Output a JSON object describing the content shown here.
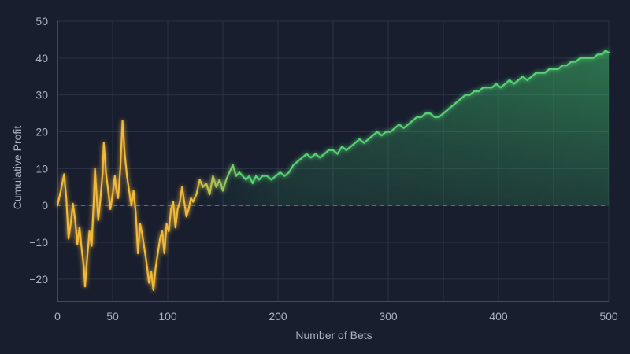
{
  "colors": {
    "background": "#181e2e",
    "grid": "#2b3346",
    "axis": "#5b6478",
    "zero_line": "#8a93a6",
    "early_series": "#f2b93b",
    "late_series": "#56d274",
    "tick_text": "#a9b1c2"
  },
  "chart_data": {
    "type": "line",
    "title": "",
    "xlabel": "Number of Bets",
    "ylabel": "Cumulative Profit",
    "xlim": [
      0,
      500
    ],
    "ylim": [
      -26,
      50
    ],
    "xticks": [
      0,
      50,
      100,
      200,
      300,
      400,
      500
    ],
    "yticks": [
      -20,
      -10,
      0,
      10,
      20,
      30,
      40,
      50
    ],
    "grid": true,
    "zero_line": "dashed",
    "area_fill": "green gradient under the later portion of the line",
    "series": [
      {
        "color_note": "yellow-orange, fading to green after about 150 bets",
        "points": [
          [
            0,
            0
          ],
          [
            3,
            4
          ],
          [
            6,
            8.5
          ],
          [
            8,
            2
          ],
          [
            10,
            -9
          ],
          [
            12,
            -5
          ],
          [
            14,
            0.5
          ],
          [
            16,
            -4
          ],
          [
            18,
            -10.5
          ],
          [
            20,
            -6
          ],
          [
            22,
            -12
          ],
          [
            24,
            -17
          ],
          [
            25,
            -22
          ],
          [
            27,
            -14
          ],
          [
            29,
            -7
          ],
          [
            31,
            -11
          ],
          [
            33,
            2
          ],
          [
            34,
            10
          ],
          [
            35,
            5
          ],
          [
            37,
            -4
          ],
          [
            39,
            2
          ],
          [
            41,
            9
          ],
          [
            42,
            17
          ],
          [
            44,
            9
          ],
          [
            46,
            4
          ],
          [
            48,
            -1
          ],
          [
            50,
            3
          ],
          [
            52,
            8
          ],
          [
            53,
            5
          ],
          [
            55,
            2
          ],
          [
            57,
            10
          ],
          [
            59,
            23
          ],
          [
            61,
            14
          ],
          [
            63,
            8
          ],
          [
            65,
            4
          ],
          [
            67,
            0
          ],
          [
            69,
            4
          ],
          [
            71,
            -2
          ],
          [
            73,
            -13
          ],
          [
            75,
            -5
          ],
          [
            77,
            -8
          ],
          [
            79,
            -12
          ],
          [
            81,
            -16
          ],
          [
            83,
            -21
          ],
          [
            85,
            -18
          ],
          [
            87,
            -23
          ],
          [
            89,
            -17
          ],
          [
            91,
            -13
          ],
          [
            93,
            -9
          ],
          [
            95,
            -7
          ],
          [
            97,
            -13
          ],
          [
            99,
            -5
          ],
          [
            101,
            -7
          ],
          [
            103,
            -1
          ],
          [
            105,
            1
          ],
          [
            107,
            -6
          ],
          [
            109,
            -1
          ],
          [
            111,
            1
          ],
          [
            113,
            5
          ],
          [
            115,
            1
          ],
          [
            117,
            -3
          ],
          [
            119,
            -1
          ],
          [
            121,
            2
          ],
          [
            123,
            1
          ],
          [
            126,
            3
          ],
          [
            129,
            7
          ],
          [
            132,
            5
          ],
          [
            135,
            6
          ],
          [
            138,
            3
          ],
          [
            141,
            8
          ],
          [
            144,
            5
          ],
          [
            147,
            7
          ],
          [
            150,
            4
          ],
          [
            153,
            7
          ],
          [
            156,
            9
          ],
          [
            159,
            11
          ],
          [
            162,
            8
          ],
          [
            165,
            9
          ],
          [
            168,
            8
          ],
          [
            171,
            7
          ],
          [
            174,
            8
          ],
          [
            177,
            6
          ],
          [
            180,
            8
          ],
          [
            183,
            7
          ],
          [
            186,
            8
          ],
          [
            190,
            8
          ],
          [
            194,
            7
          ],
          [
            198,
            8
          ],
          [
            202,
            9
          ],
          [
            206,
            8
          ],
          [
            210,
            9
          ],
          [
            214,
            11
          ],
          [
            218,
            12
          ],
          [
            222,
            13
          ],
          [
            226,
            14
          ],
          [
            230,
            13
          ],
          [
            234,
            14
          ],
          [
            238,
            13
          ],
          [
            242,
            14
          ],
          [
            246,
            15
          ],
          [
            250,
            15
          ],
          [
            254,
            14
          ],
          [
            258,
            16
          ],
          [
            262,
            15
          ],
          [
            266,
            16
          ],
          [
            270,
            17
          ],
          [
            274,
            18
          ],
          [
            278,
            17
          ],
          [
            282,
            18
          ],
          [
            286,
            19
          ],
          [
            290,
            20
          ],
          [
            294,
            19
          ],
          [
            298,
            20
          ],
          [
            302,
            20
          ],
          [
            306,
            21
          ],
          [
            310,
            22
          ],
          [
            314,
            21
          ],
          [
            318,
            22
          ],
          [
            322,
            23
          ],
          [
            326,
            24
          ],
          [
            330,
            24
          ],
          [
            334,
            25
          ],
          [
            338,
            25
          ],
          [
            342,
            24
          ],
          [
            346,
            24
          ],
          [
            350,
            25
          ],
          [
            354,
            26
          ],
          [
            358,
            27
          ],
          [
            362,
            28
          ],
          [
            366,
            29
          ],
          [
            370,
            30
          ],
          [
            374,
            30
          ],
          [
            378,
            31
          ],
          [
            382,
            31
          ],
          [
            386,
            32
          ],
          [
            390,
            32
          ],
          [
            394,
            32
          ],
          [
            398,
            33
          ],
          [
            402,
            32
          ],
          [
            406,
            33
          ],
          [
            410,
            34
          ],
          [
            414,
            33
          ],
          [
            418,
            34
          ],
          [
            422,
            35
          ],
          [
            426,
            34
          ],
          [
            430,
            35
          ],
          [
            434,
            36
          ],
          [
            438,
            36
          ],
          [
            442,
            36
          ],
          [
            446,
            37
          ],
          [
            450,
            37
          ],
          [
            454,
            37
          ],
          [
            458,
            38
          ],
          [
            462,
            38
          ],
          [
            466,
            39
          ],
          [
            470,
            39
          ],
          [
            474,
            40
          ],
          [
            478,
            40
          ],
          [
            482,
            40
          ],
          [
            486,
            40
          ],
          [
            490,
            41
          ],
          [
            494,
            41
          ],
          [
            497,
            42
          ],
          [
            500,
            41.5
          ]
        ]
      }
    ]
  }
}
